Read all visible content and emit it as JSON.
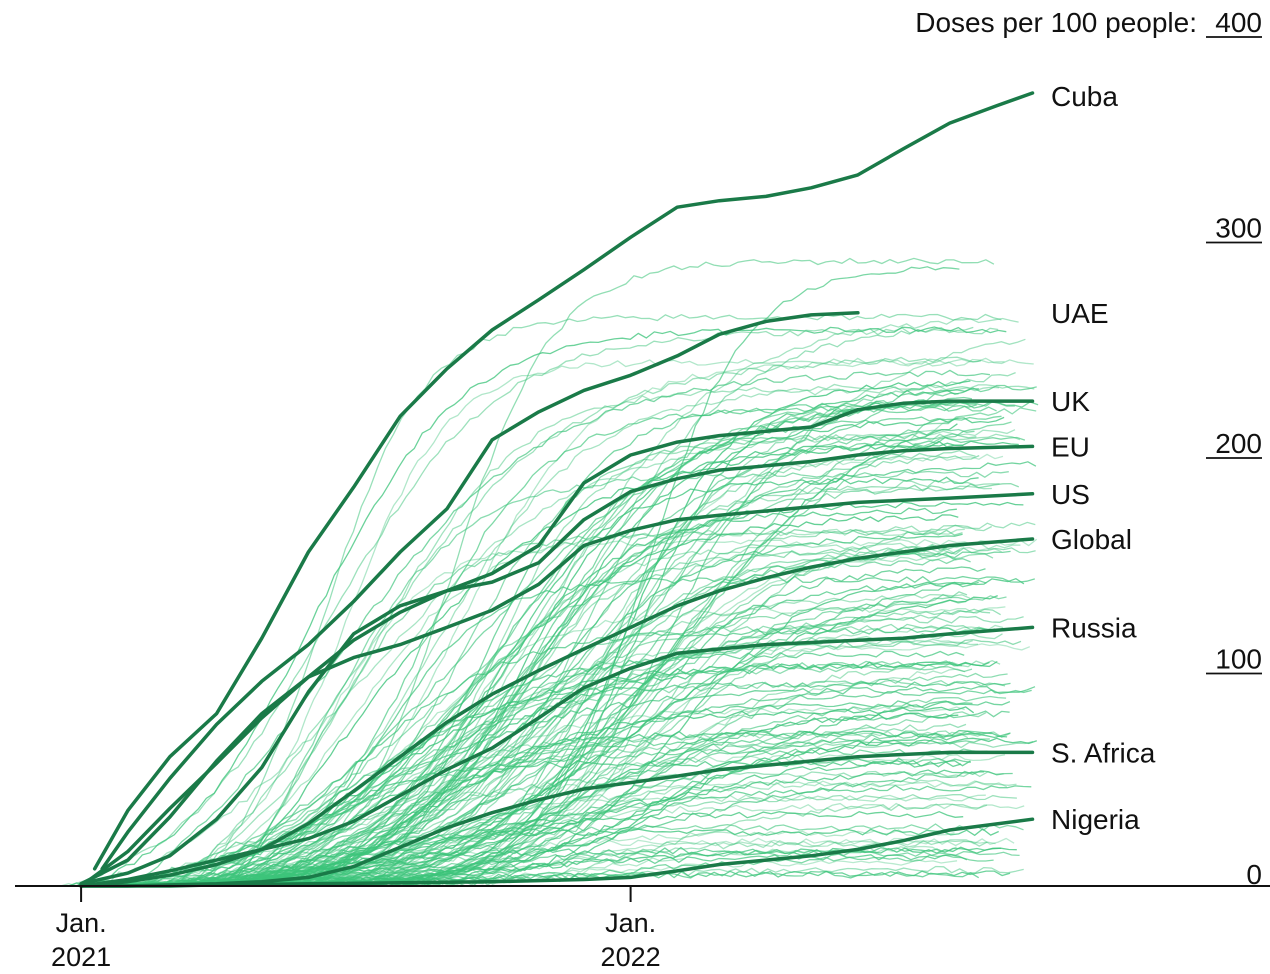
{
  "chart_data": {
    "type": "line",
    "y_axis_title": "Doses per 100 people:",
    "ylim": [
      0,
      400
    ],
    "y_ticks": [
      {
        "value": 400,
        "label": "400"
      },
      {
        "value": 300,
        "label": "300"
      },
      {
        "value": 200,
        "label": "200"
      },
      {
        "value": 100,
        "label": "100"
      },
      {
        "value": 0,
        "label": "0"
      }
    ],
    "x_ticks": [
      {
        "date": "2021-01-01",
        "line1": "Jan.",
        "line2": "2021"
      },
      {
        "date": "2022-01-01",
        "line1": "Jan.",
        "line2": "2022"
      }
    ],
    "xlim": [
      "2020-12-10",
      "2022-09-30"
    ],
    "grid": false,
    "colors": {
      "highlight": "#1a7a48",
      "background_series": "#3cc47a",
      "axis": "#111111"
    },
    "series": [
      {
        "name": "Cuba",
        "points": [
          [
            "2021-01-10",
            8
          ],
          [
            "2021-02-01",
            35
          ],
          [
            "2021-03-01",
            60
          ],
          [
            "2021-04-01",
            80
          ],
          [
            "2021-05-01",
            115
          ],
          [
            "2021-06-01",
            155
          ],
          [
            "2021-07-01",
            185
          ],
          [
            "2021-08-01",
            218
          ],
          [
            "2021-09-01",
            240
          ],
          [
            "2021-10-01",
            258
          ],
          [
            "2021-11-01",
            272
          ],
          [
            "2021-12-01",
            286
          ],
          [
            "2022-01-01",
            301
          ],
          [
            "2022-02-01",
            315
          ],
          [
            "2022-03-01",
            318
          ],
          [
            "2022-04-01",
            320
          ],
          [
            "2022-05-01",
            324
          ],
          [
            "2022-06-01",
            330
          ],
          [
            "2022-07-01",
            342
          ],
          [
            "2022-08-01",
            354
          ],
          [
            "2022-09-01",
            362
          ],
          [
            "2022-09-25",
            368
          ]
        ]
      },
      {
        "name": "UAE",
        "points": [
          [
            "2021-01-15",
            8
          ],
          [
            "2021-02-01",
            25
          ],
          [
            "2021-03-01",
            50
          ],
          [
            "2021-04-01",
            75
          ],
          [
            "2021-05-01",
            95
          ],
          [
            "2021-06-01",
            112
          ],
          [
            "2021-07-01",
            132
          ],
          [
            "2021-08-01",
            155
          ],
          [
            "2021-09-01",
            175
          ],
          [
            "2021-10-01",
            207
          ],
          [
            "2021-11-01",
            220
          ],
          [
            "2021-12-01",
            230
          ],
          [
            "2022-01-01",
            237
          ],
          [
            "2022-02-01",
            246
          ],
          [
            "2022-03-01",
            256
          ],
          [
            "2022-04-01",
            262
          ],
          [
            "2022-05-01",
            265
          ],
          [
            "2022-06-01",
            266
          ]
        ]
      },
      {
        "name": "UK",
        "points": [
          [
            "2021-01-01",
            0
          ],
          [
            "2021-02-01",
            16
          ],
          [
            "2021-03-01",
            36
          ],
          [
            "2021-04-01",
            57
          ],
          [
            "2021-05-01",
            78
          ],
          [
            "2021-06-01",
            97
          ],
          [
            "2021-07-01",
            114
          ],
          [
            "2021-08-01",
            127
          ],
          [
            "2021-09-01",
            137
          ],
          [
            "2021-10-01",
            145
          ],
          [
            "2021-11-01",
            158
          ],
          [
            "2021-12-01",
            187
          ],
          [
            "2022-01-01",
            200
          ],
          [
            "2022-02-01",
            206
          ],
          [
            "2022-03-01",
            209
          ],
          [
            "2022-04-01",
            211
          ],
          [
            "2022-05-01",
            213
          ],
          [
            "2022-06-01",
            221
          ],
          [
            "2022-07-01",
            224
          ],
          [
            "2022-08-01",
            225
          ],
          [
            "2022-09-25",
            225
          ]
        ]
      },
      {
        "name": "EU",
        "points": [
          [
            "2021-01-01",
            1
          ],
          [
            "2021-02-01",
            6
          ],
          [
            "2021-03-01",
            14
          ],
          [
            "2021-04-01",
            31
          ],
          [
            "2021-05-01",
            55
          ],
          [
            "2021-06-01",
            90
          ],
          [
            "2021-07-01",
            117
          ],
          [
            "2021-08-01",
            130
          ],
          [
            "2021-09-01",
            137
          ],
          [
            "2021-10-01",
            141
          ],
          [
            "2021-11-01",
            150
          ],
          [
            "2021-12-01",
            170
          ],
          [
            "2022-01-01",
            183
          ],
          [
            "2022-02-01",
            189
          ],
          [
            "2022-03-01",
            193
          ],
          [
            "2022-04-01",
            195
          ],
          [
            "2022-05-01",
            197
          ],
          [
            "2022-06-01",
            200
          ],
          [
            "2022-07-01",
            202
          ],
          [
            "2022-08-01",
            203
          ],
          [
            "2022-09-25",
            204
          ]
        ]
      },
      {
        "name": "US",
        "points": [
          [
            "2021-01-01",
            1
          ],
          [
            "2021-02-01",
            12
          ],
          [
            "2021-03-01",
            32
          ],
          [
            "2021-04-01",
            58
          ],
          [
            "2021-05-01",
            80
          ],
          [
            "2021-06-01",
            97
          ],
          [
            "2021-07-01",
            106
          ],
          [
            "2021-08-01",
            112
          ],
          [
            "2021-09-01",
            120
          ],
          [
            "2021-10-01",
            128
          ],
          [
            "2021-11-01",
            140
          ],
          [
            "2021-12-01",
            158
          ],
          [
            "2022-01-01",
            165
          ],
          [
            "2022-02-01",
            170
          ],
          [
            "2022-03-01",
            172
          ],
          [
            "2022-04-01",
            174
          ],
          [
            "2022-05-01",
            176
          ],
          [
            "2022-06-01",
            178
          ],
          [
            "2022-07-01",
            179
          ],
          [
            "2022-08-01",
            180
          ],
          [
            "2022-09-25",
            182
          ]
        ]
      },
      {
        "name": "Global",
        "points": [
          [
            "2021-01-01",
            0
          ],
          [
            "2021-02-01",
            2
          ],
          [
            "2021-03-01",
            5
          ],
          [
            "2021-04-01",
            10
          ],
          [
            "2021-05-01",
            17
          ],
          [
            "2021-06-01",
            29
          ],
          [
            "2021-07-01",
            44
          ],
          [
            "2021-08-01",
            60
          ],
          [
            "2021-09-01",
            76
          ],
          [
            "2021-10-01",
            89
          ],
          [
            "2021-11-01",
            100
          ],
          [
            "2021-12-01",
            110
          ],
          [
            "2022-01-01",
            120
          ],
          [
            "2022-02-01",
            130
          ],
          [
            "2022-03-01",
            137
          ],
          [
            "2022-04-01",
            143
          ],
          [
            "2022-05-01",
            148
          ],
          [
            "2022-06-01",
            152
          ],
          [
            "2022-07-01",
            155
          ],
          [
            "2022-08-01",
            158
          ],
          [
            "2022-09-25",
            161
          ]
        ]
      },
      {
        "name": "Russia",
        "points": [
          [
            "2021-01-01",
            0
          ],
          [
            "2021-02-01",
            3
          ],
          [
            "2021-03-01",
            7
          ],
          [
            "2021-04-01",
            12
          ],
          [
            "2021-05-01",
            17
          ],
          [
            "2021-06-01",
            22
          ],
          [
            "2021-07-01",
            30
          ],
          [
            "2021-08-01",
            42
          ],
          [
            "2021-09-01",
            54
          ],
          [
            "2021-10-01",
            64
          ],
          [
            "2021-11-01",
            78
          ],
          [
            "2021-12-01",
            92
          ],
          [
            "2022-01-01",
            101
          ],
          [
            "2022-02-01",
            108
          ],
          [
            "2022-03-01",
            110
          ],
          [
            "2022-04-01",
            112
          ],
          [
            "2022-05-01",
            113
          ],
          [
            "2022-06-01",
            114
          ],
          [
            "2022-07-01",
            115
          ],
          [
            "2022-08-01",
            117
          ],
          [
            "2022-09-25",
            120
          ]
        ]
      },
      {
        "name": "S. Africa",
        "points": [
          [
            "2021-01-01",
            0
          ],
          [
            "2021-02-01",
            0
          ],
          [
            "2021-03-01",
            0.5
          ],
          [
            "2021-04-01",
            1
          ],
          [
            "2021-05-01",
            2
          ],
          [
            "2021-06-01",
            4
          ],
          [
            "2021-07-01",
            9
          ],
          [
            "2021-08-01",
            18
          ],
          [
            "2021-09-01",
            27
          ],
          [
            "2021-10-01",
            34
          ],
          [
            "2021-11-01",
            40
          ],
          [
            "2021-12-01",
            45
          ],
          [
            "2022-01-01",
            48
          ],
          [
            "2022-02-01",
            51
          ],
          [
            "2022-03-01",
            54
          ],
          [
            "2022-04-01",
            56
          ],
          [
            "2022-05-01",
            58
          ],
          [
            "2022-06-01",
            60
          ],
          [
            "2022-07-01",
            61
          ],
          [
            "2022-08-01",
            62
          ],
          [
            "2022-09-25",
            62
          ]
        ]
      },
      {
        "name": "Nigeria",
        "points": [
          [
            "2021-01-01",
            0
          ],
          [
            "2021-03-01",
            0
          ],
          [
            "2021-04-01",
            0.5
          ],
          [
            "2021-06-01",
            1
          ],
          [
            "2021-08-01",
            1.5
          ],
          [
            "2021-10-01",
            2
          ],
          [
            "2021-12-01",
            3
          ],
          [
            "2022-01-01",
            4
          ],
          [
            "2022-02-01",
            7
          ],
          [
            "2022-03-01",
            10
          ],
          [
            "2022-04-01",
            12
          ],
          [
            "2022-05-01",
            14
          ],
          [
            "2022-06-01",
            17
          ],
          [
            "2022-07-01",
            21
          ],
          [
            "2022-08-01",
            26
          ],
          [
            "2022-09-25",
            31
          ]
        ]
      }
    ]
  }
}
